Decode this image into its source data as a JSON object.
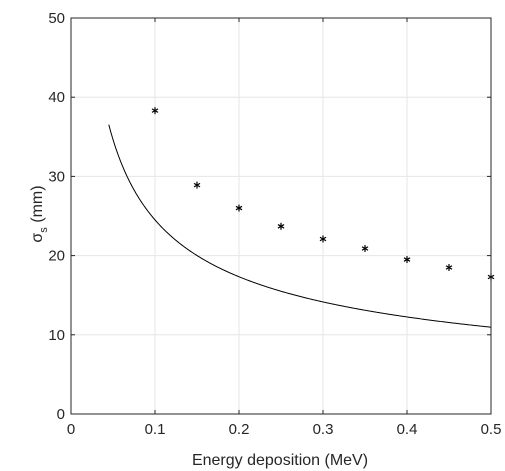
{
  "chart_data": {
    "type": "scatter",
    "xlabel": "Energy deposition (MeV)",
    "ylabel_main": "σ",
    "ylabel_sub": "s",
    "ylabel_unit": " (mm)",
    "xlim": [
      0,
      0.5
    ],
    "ylim": [
      0,
      50
    ],
    "xticks": [
      0,
      0.1,
      0.2,
      0.3,
      0.4,
      0.5
    ],
    "xtick_labels": [
      "0",
      "0.1",
      "0.2",
      "0.3",
      "0.4",
      "0.5"
    ],
    "yticks": [
      0,
      10,
      20,
      30,
      40,
      50
    ],
    "ytick_labels": [
      "0",
      "10",
      "20",
      "30",
      "40",
      "50"
    ],
    "grid": true,
    "series": [
      {
        "kind": "points",
        "marker": "asterisk",
        "x": [
          0.1,
          0.15,
          0.2,
          0.25,
          0.3,
          0.35,
          0.4,
          0.45,
          0.5
        ],
        "y": [
          38.3,
          28.9,
          26.0,
          23.7,
          22.1,
          20.9,
          19.5,
          18.5,
          17.3
        ]
      },
      {
        "kind": "fit_curve",
        "model": "a*x^b",
        "a": 7.75,
        "b": -0.5,
        "x_range": [
          0.0,
          0.5
        ]
      }
    ],
    "colors": {
      "line": "#000000",
      "grid": "#e6e6e6",
      "axis": "#262626"
    }
  }
}
